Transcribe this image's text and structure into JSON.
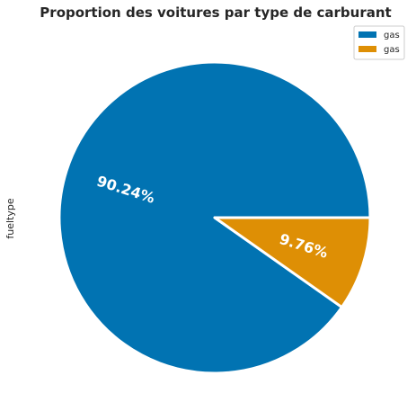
{
  "chart_data": {
    "type": "pie",
    "title": "Proportion des voitures par type de carburant",
    "ylabel": "fueltype",
    "labels": [
      "gas",
      "gas"
    ],
    "values": [
      90.24,
      9.76
    ],
    "value_labels": [
      "90.24%",
      "9.76%"
    ],
    "colors": [
      "#0173b2",
      "#de8f05"
    ],
    "legend": {
      "placement": "top-right",
      "entries": [
        "gas",
        "gas"
      ]
    },
    "start_angle_deg": 0,
    "direction": "counterclockwise",
    "edge_color": "#ffffff"
  }
}
